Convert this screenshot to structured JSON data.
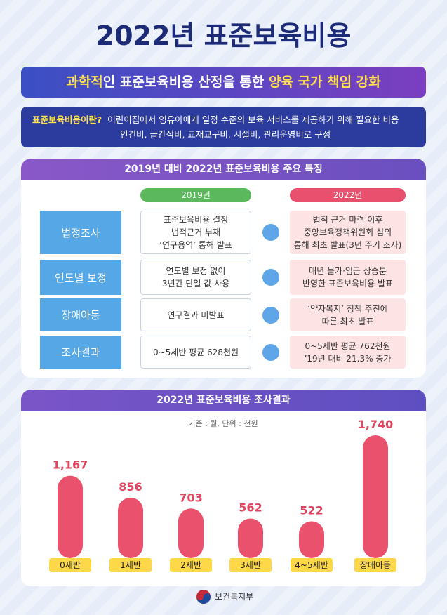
{
  "title": "2022년 표준보육비용",
  "banner": {
    "parts": [
      "과학적",
      "인 표준보육비용 산정을 통한 ",
      "양육 국가 책임 강화"
    ]
  },
  "definition": {
    "label": "표준보육비용이란?",
    "lines": [
      "어린이집에서 영유아에게 일정 수준의 보육 서비스를 제공하기 위해 필요한 비용",
      "인건비, 급간식비, 교재교구비, 시설비, 관리운영비로 구성"
    ]
  },
  "comparison": {
    "title": "2019년 대비 2022년 표준보육비용 주요 특징",
    "columns": [
      "2019년",
      "2022년"
    ],
    "rows": [
      {
        "label": "법정조사",
        "before": [
          "표준보육비용 결정",
          "법적근거 부재",
          "‘연구용역’ 통해 발표"
        ],
        "after": [
          "법적 근거 마련 이후",
          "중앙보육정책위원회 심의",
          "통해 최초 발표(3년 주기 조사)"
        ]
      },
      {
        "label": "연도별 보정",
        "before": [
          "연도별 보정 없이",
          "3년간 단일 값 사용"
        ],
        "after": [
          "매년 물가·임금 상승분",
          "반영한 표준보육비용 발표"
        ]
      },
      {
        "label": "장애아동",
        "before": [
          "연구결과 미발표"
        ],
        "after": [
          "‘약자복지’ 정책 추진에",
          "따른 최초 발표"
        ]
      },
      {
        "label": "조사결과",
        "before": [
          "0~5세반 평균 628천원"
        ],
        "after": [
          "0~5세반 평균 762천원",
          "’19년 대비 21.3% 증가"
        ]
      }
    ]
  },
  "chart_data": {
    "type": "bar",
    "title": "2022년 표준보육비용 조사결과",
    "subtitle": "기준 : 월, 단위 : 천원",
    "categories": [
      "0세반",
      "1세반",
      "2세반",
      "3세반",
      "4~5세반",
      "장애아동"
    ],
    "values": [
      1167,
      856,
      703,
      562,
      522,
      1740
    ],
    "value_labels": [
      "1,167",
      "856",
      "703",
      "562",
      "522",
      "1,740"
    ],
    "color": "#ea516c"
  },
  "footer": "보건복지부"
}
